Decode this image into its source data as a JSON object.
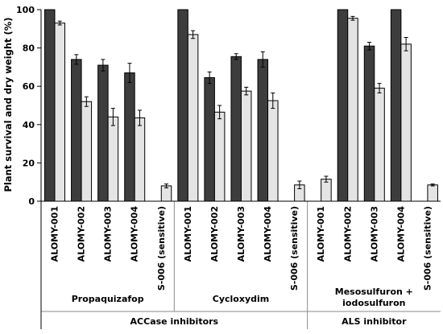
{
  "chart_data": {
    "type": "bar",
    "ylabel": "Plant survival and dry weight (%)",
    "ylim": [
      0,
      100
    ],
    "yticks": [
      0,
      20,
      40,
      60,
      80,
      100
    ],
    "grid": false,
    "colors": {
      "survival": "#3d3d3d",
      "dry_weight": "#e4e4e4"
    },
    "supergroups": [
      {
        "label": "ACCase inhibitors",
        "groups": [
          0,
          1
        ]
      },
      {
        "label": "ALS inhibitor",
        "groups": [
          2
        ]
      }
    ],
    "groups": [
      {
        "label": "Propaquizafop",
        "categories": [
          {
            "label": "ALOMY-001",
            "survival": 100,
            "survival_err": 0,
            "dry_weight": 93,
            "dry_weight_err": 1
          },
          {
            "label": "ALOMY-002",
            "survival": 74,
            "survival_err": 2.5,
            "dry_weight": 52,
            "dry_weight_err": 2.5
          },
          {
            "label": "ALOMY-003",
            "survival": 71,
            "survival_err": 3,
            "dry_weight": 44,
            "dry_weight_err": 4.5
          },
          {
            "label": "ALOMY-004",
            "survival": 67,
            "survival_err": 5,
            "dry_weight": 43.5,
            "dry_weight_err": 4
          },
          {
            "label": "S-006 (sensitive)",
            "survival": null,
            "survival_err": null,
            "dry_weight": 8,
            "dry_weight_err": 1
          }
        ]
      },
      {
        "label": "Cycloxydim",
        "categories": [
          {
            "label": "ALOMY-001",
            "survival": 100,
            "survival_err": 0,
            "dry_weight": 87,
            "dry_weight_err": 2
          },
          {
            "label": "ALOMY-002",
            "survival": 64.5,
            "survival_err": 3,
            "dry_weight": 46.5,
            "dry_weight_err": 3.5
          },
          {
            "label": "ALOMY-003",
            "survival": 75.5,
            "survival_err": 1.5,
            "dry_weight": 57.5,
            "dry_weight_err": 2
          },
          {
            "label": "ALOMY-004",
            "survival": 74,
            "survival_err": 4,
            "dry_weight": 52.5,
            "dry_weight_err": 4
          },
          {
            "label": "S-006 (sensitive)",
            "survival": null,
            "survival_err": null,
            "dry_weight": 8.5,
            "dry_weight_err": 2
          }
        ]
      },
      {
        "label": "Mesosulfuron + iodosulfuron",
        "label_lines": [
          "Mesosulfuron +",
          "iodosulfuron"
        ],
        "categories": [
          {
            "label": "ALOMY-001",
            "survival": null,
            "survival_err": null,
            "dry_weight": 11.5,
            "dry_weight_err": 1.5
          },
          {
            "label": "ALOMY-002",
            "survival": 100,
            "survival_err": 0,
            "dry_weight": 95.5,
            "dry_weight_err": 1
          },
          {
            "label": "ALOMY-003",
            "survival": 81,
            "survival_err": 2,
            "dry_weight": 59,
            "dry_weight_err": 2.5
          },
          {
            "label": "ALOMY-004",
            "survival": 100,
            "survival_err": 0,
            "dry_weight": 82,
            "dry_weight_err": 3.5
          },
          {
            "label": "S-006 (sensitive)",
            "survival": null,
            "survival_err": null,
            "dry_weight": 8.5,
            "dry_weight_err": 0.5
          }
        ]
      }
    ]
  }
}
